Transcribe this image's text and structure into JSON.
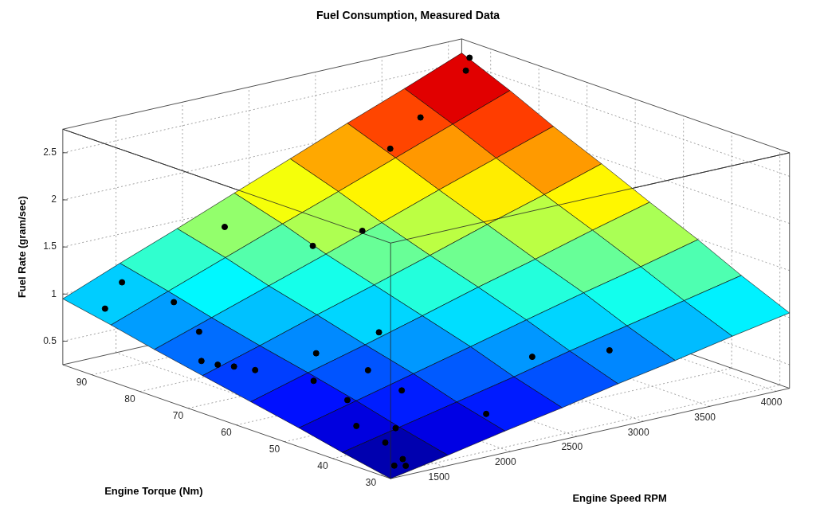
{
  "chart_data": {
    "type": "surface",
    "title": "Fuel Consumption, Measured Data",
    "xlabel": "Engine Speed RPM",
    "ylabel": "Engine Torque (Nm)",
    "zlabel": "Fuel Rate (gram/sec)",
    "xlim": [
      1100,
      4100
    ],
    "xticks": [
      1500,
      2000,
      2500,
      3000,
      3500,
      4000
    ],
    "ylim": [
      28,
      96
    ],
    "yticks": [
      30,
      40,
      50,
      60,
      70,
      80,
      90
    ],
    "zlim": [
      0.25,
      2.75
    ],
    "zticks": [
      0.5,
      1,
      1.5,
      2,
      2.5
    ],
    "grid": true,
    "surface": {
      "x": [
        1100,
        1530,
        1960,
        2390,
        2810,
        3240,
        3670,
        4100
      ],
      "y": [
        28,
        38,
        47,
        57,
        67,
        77,
        86,
        96
      ],
      "z": [
        [
          0.25,
          0.36,
          0.48,
          0.59,
          0.71,
          0.82,
          0.94,
          1.05
        ],
        [
          0.35,
          0.48,
          0.61,
          0.74,
          0.88,
          1.01,
          1.14,
          1.27
        ],
        [
          0.45,
          0.6,
          0.75,
          0.9,
          1.05,
          1.2,
          1.34,
          1.49
        ],
        [
          0.55,
          0.72,
          0.88,
          1.05,
          1.22,
          1.38,
          1.55,
          1.71
        ],
        [
          0.65,
          0.83,
          1.02,
          1.2,
          1.38,
          1.57,
          1.75,
          1.94
        ],
        [
          0.75,
          0.95,
          1.15,
          1.35,
          1.55,
          1.76,
          1.96,
          2.16
        ],
        [
          0.85,
          1.07,
          1.29,
          1.51,
          1.72,
          1.94,
          2.16,
          2.38
        ],
        [
          0.95,
          1.19,
          1.42,
          1.66,
          1.89,
          2.13,
          2.36,
          2.6
        ]
      ]
    },
    "points": {
      "color": "#000000",
      "marker": "circle",
      "x": [
        4050,
        3950,
        3500,
        3200,
        2100,
        2400,
        2700,
        1400,
        1500,
        1200,
        1400,
        1200,
        1250,
        1300,
        1350,
        1700,
        2100,
        1500,
        1800,
        1500,
        1800,
        1350,
        1500,
        1350,
        2000,
        1300,
        1200,
        1250,
        2600,
        3000
      ],
      "y": [
        93,
        91,
        88,
        86,
        90,
        80,
        78,
        92,
        84,
        90,
        76,
        70,
        68,
        66,
        63,
        60,
        58,
        55,
        52,
        48,
        45,
        42,
        38,
        36,
        33,
        31,
        30,
        29,
        40,
        35
      ],
      "z": [
        2.62,
        2.55,
        2.25,
        2.05,
        1.5,
        1.38,
        1.48,
        1.1,
        1.0,
        0.92,
        0.86,
        0.72,
        0.7,
        0.7,
        0.7,
        0.82,
        0.95,
        0.68,
        0.75,
        0.6,
        0.66,
        0.48,
        0.48,
        0.41,
        0.56,
        0.34,
        0.32,
        0.32,
        0.85,
        0.88
      ]
    }
  }
}
